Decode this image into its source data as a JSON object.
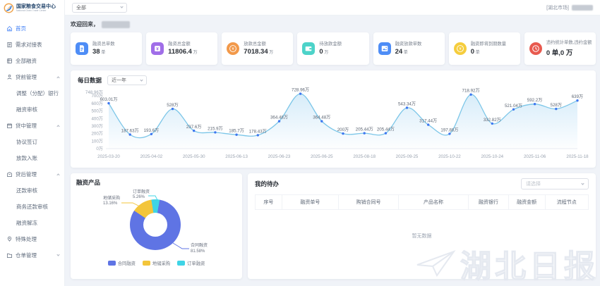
{
  "brand": {
    "title": "国家粮食交易中心",
    "subtitle": "National Grain Trade Center"
  },
  "header": {
    "market_select": "全部",
    "user_region": "[湖北市场]"
  },
  "sidebar": {
    "items": [
      {
        "label": "首页",
        "icon": "home",
        "type": "top",
        "active": true
      },
      {
        "label": "需求对接表",
        "icon": "demand",
        "type": "top"
      },
      {
        "label": "全部融资",
        "icon": "all-finance",
        "type": "top"
      },
      {
        "label": "贷前管理",
        "icon": "pre-loan",
        "type": "top",
        "arrow": "up"
      },
      {
        "label": "调整（分配）银行",
        "type": "sub"
      },
      {
        "label": "融资审核",
        "type": "sub"
      },
      {
        "label": "贷中管理",
        "icon": "mid-loan",
        "type": "top",
        "arrow": "up"
      },
      {
        "label": "协议签订",
        "type": "sub"
      },
      {
        "label": "放款入账",
        "type": "sub"
      },
      {
        "label": "贷后管理",
        "icon": "post-loan",
        "type": "top",
        "arrow": "up"
      },
      {
        "label": "还款审核",
        "type": "sub"
      },
      {
        "label": "商务还款审核",
        "type": "sub"
      },
      {
        "label": "融资解冻",
        "type": "sub"
      },
      {
        "label": "特殊处理",
        "icon": "special",
        "type": "top"
      },
      {
        "label": "仓单管理",
        "icon": "warehouse",
        "type": "top",
        "arrow": "down"
      }
    ]
  },
  "welcome": {
    "prefix": "欢迎回来，"
  },
  "stats": [
    {
      "title": "融资总单数",
      "value": "38",
      "unit": "单",
      "icon": "document",
      "color": "#4e8df6",
      "shape": "square"
    },
    {
      "title": "融资总金额",
      "value": "11806.4",
      "unit": "万",
      "icon": "money",
      "color": "#a06ee8",
      "shape": "square"
    },
    {
      "title": "放款总金额",
      "value": "7018.34",
      "unit": "万",
      "icon": "coin",
      "color": "#f2994a",
      "shape": "circle"
    },
    {
      "title": "待放款金额",
      "value": "0",
      "unit": "万",
      "icon": "wallet",
      "color": "#4dd3c9",
      "shape": "square"
    },
    {
      "title": "融资放款单数",
      "value": "24",
      "unit": "单",
      "icon": "image",
      "color": "#4e8df6",
      "shape": "square"
    },
    {
      "title": "融资即将到期数量",
      "value": "0",
      "unit": "单",
      "icon": "coin",
      "color": "#f5cd3d",
      "shape": "circle"
    },
    {
      "title": "违约统计单数,违约金额",
      "value": "0 单,0 万",
      "unit": "",
      "icon": "clock",
      "color": "#e85a4f",
      "shape": "circle"
    }
  ],
  "chart_data": [
    {
      "type": "area",
      "title": "每日数据",
      "range": "近一年",
      "values": [
        603.01,
        187.63,
        193.6,
        528,
        237.6,
        215.9,
        185.7,
        178.43,
        364.48,
        728.96,
        364.48,
        200,
        205.44,
        205.44,
        543.34,
        317.44,
        197.88,
        718.92,
        332.82,
        521.04,
        592.2,
        528,
        639
      ],
      "point_labels": [
        "603.01万",
        "187.63万",
        "193.6万",
        "528万",
        "237.6万",
        "215.9万",
        "185.7万",
        "178.43万",
        "364.48万",
        "728.96万",
        "364.48万",
        "200万",
        "205.44万",
        "205.44万",
        "543.34万",
        "317.44万",
        "197.88万",
        "718.92万",
        "332.82万",
        "521.04万",
        "592.2万",
        "528万",
        "639万"
      ],
      "x_labels": [
        "2025-03-20",
        "2025-04-02",
        "2025-05-30",
        "2025-06-13",
        "2025-06-23",
        "2025-06-25",
        "2025-08-18",
        "2025-09-25",
        "2025-10-22",
        "2025-10-24",
        "2025-11-06",
        "2025-11-18"
      ],
      "y_ticks": {
        "values": [
          0,
          100,
          200,
          300,
          400,
          500,
          600,
          700,
          748.96
        ],
        "labels": [
          "0万",
          "100万",
          "200万",
          "300万",
          "400万",
          "500万",
          "600万",
          "700万",
          "748.96万"
        ]
      },
      "ylim": [
        0,
        748.96
      ],
      "grid": false,
      "line_color": "#7cc6e8",
      "point_color": "#3e77f0",
      "fill_from": "rgba(130,196,238,0.32)",
      "fill_to": "rgba(130,196,238,0.02)"
    },
    {
      "type": "pie",
      "title": "融资产品",
      "slices": [
        {
          "name": "合同融资",
          "pct": 81.58,
          "color": "#5f74e4"
        },
        {
          "name": "地储采购",
          "pct": 13.16,
          "color": "#f3c53b"
        },
        {
          "name": "订单融资",
          "pct": 5.26,
          "color": "#3fd4e6"
        }
      ],
      "legend_position": "bottom"
    }
  ],
  "todo": {
    "title": "我的待办",
    "select_placeholder": "请选择",
    "columns": [
      "序号",
      "融资单号",
      "购销合同号",
      "产品名称",
      "融资银行",
      "融资金额",
      "流程节点"
    ],
    "empty": "暂无数据"
  },
  "watermark": {
    "text": "湖北日报"
  }
}
